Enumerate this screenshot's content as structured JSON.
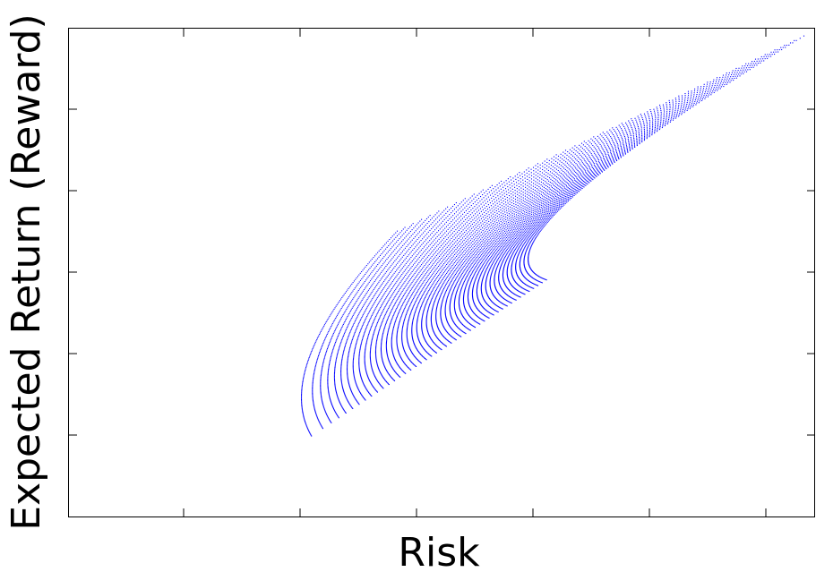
{
  "chart_data": {
    "type": "scatter",
    "title": "",
    "xlabel": "Risk",
    "ylabel": "Expected Return (Reward)",
    "xlim": [
      0,
      1
    ],
    "ylim": [
      0,
      1
    ],
    "x_tick_labels": [],
    "y_tick_labels": [],
    "grid": false,
    "legend": "none",
    "series": [
      {
        "color": "#0000ff",
        "description_of_shape": "feasible portfolio set: dense family of dotted curves forming a bullet-shaped efficient frontier",
        "values": [
          {
            "x": 0.325,
            "y": 0.165
          },
          {
            "x": 0.3,
            "y": 0.225
          },
          {
            "x": 0.295,
            "y": 0.3
          },
          {
            "x": 0.32,
            "y": 0.4
          },
          {
            "x": 0.39,
            "y": 0.52
          },
          {
            "x": 0.48,
            "y": 0.62
          },
          {
            "x": 0.6,
            "y": 0.74
          },
          {
            "x": 0.75,
            "y": 0.86
          },
          {
            "x": 0.86,
            "y": 0.935
          },
          {
            "x": 0.985,
            "y": 0.985
          },
          {
            "x": 0.545,
            "y": 0.625
          },
          {
            "x": 0.46,
            "y": 0.59
          },
          {
            "x": 0.44,
            "y": 0.585
          },
          {
            "x": 0.595,
            "y": 0.49
          },
          {
            "x": 0.64,
            "y": 0.485
          },
          {
            "x": 0.5,
            "y": 0.44
          },
          {
            "x": 0.41,
            "y": 0.37
          },
          {
            "x": 0.34,
            "y": 0.3
          },
          {
            "x": 0.33,
            "y": 0.2
          },
          {
            "x": 0.345,
            "y": 0.165
          }
        ]
      }
    ]
  }
}
